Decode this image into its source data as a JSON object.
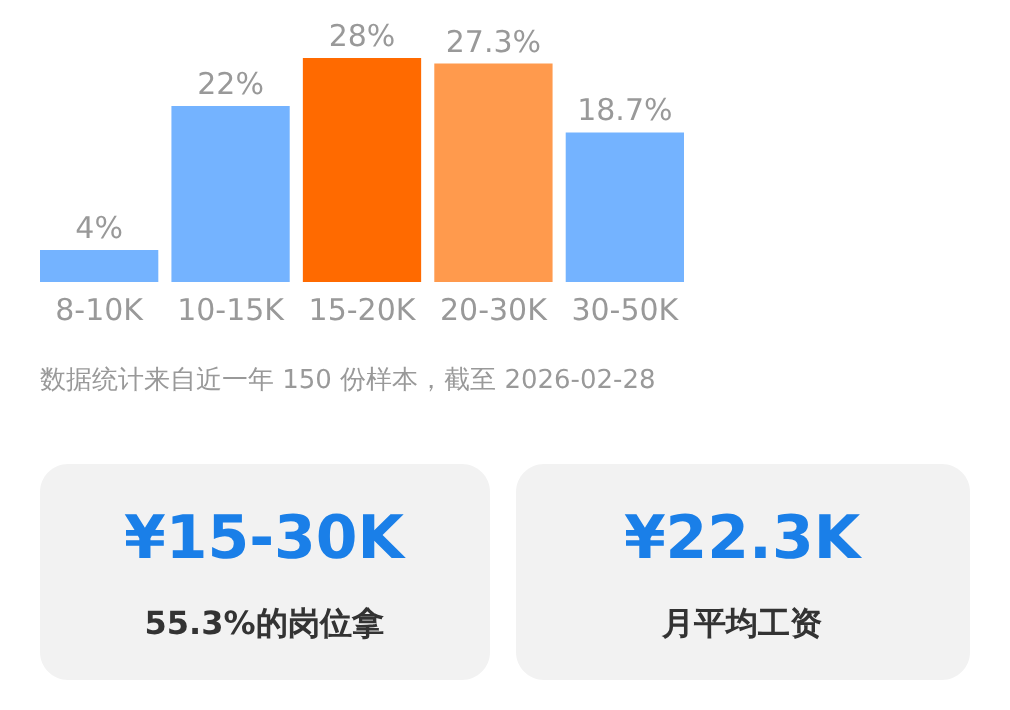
{
  "chart_data": {
    "type": "bar",
    "categories": [
      "8-10K",
      "10-15K",
      "15-20K",
      "20-30K",
      "30-50K"
    ],
    "values": [
      4,
      22,
      28,
      27.3,
      18.7
    ],
    "colors": [
      "#74b3ff",
      "#74b3ff",
      "#ff6a00",
      "#ff9a4d",
      "#74b3ff"
    ],
    "value_labels": [
      "4%",
      "22%",
      "28%",
      "27.3%",
      "18.7%"
    ],
    "annotations": [
      "数据统计来自近一年 150 份样本，截至 2026-02-28",
      "¥15-30K",
      "55.3%的岗位拿",
      "¥22.3K",
      "月平均工资"
    ]
  }
}
